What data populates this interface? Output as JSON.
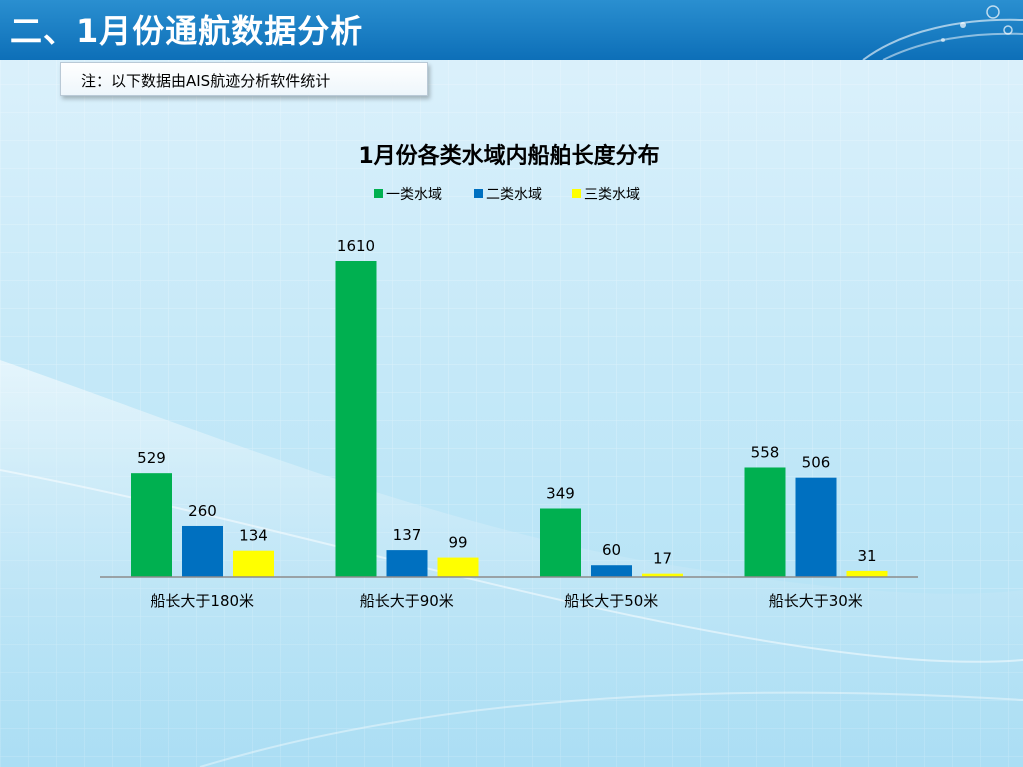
{
  "header": {
    "title": "二、1月份通航数据分析"
  },
  "note": {
    "text": "注：以下数据由AIS航迹分析软件统计"
  },
  "colors": {
    "banner": "#0d6fb8",
    "series": [
      "#00b050",
      "#0070c0",
      "#ffff00"
    ]
  },
  "chart_data": {
    "type": "bar",
    "title": "1月份各类水域内船舶长度分布",
    "categories": [
      "船长大于180米",
      "船长大于90米",
      "船长大于50米",
      "船长大于30米"
    ],
    "series": [
      {
        "name": "一类水域",
        "values": [
          529,
          1610,
          349,
          558
        ]
      },
      {
        "name": "二类水域",
        "values": [
          260,
          137,
          60,
          506
        ]
      },
      {
        "name": "三类水域",
        "values": [
          134,
          99,
          17,
          31
        ]
      }
    ],
    "xlabel": "",
    "ylabel": "",
    "ylim": [
      0,
      1610
    ],
    "grid": false,
    "legend": "top"
  }
}
